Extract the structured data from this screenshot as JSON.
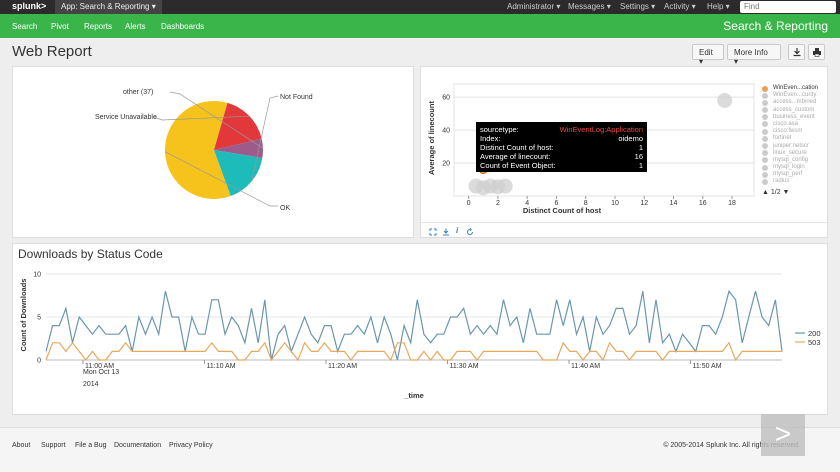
{
  "topbar": {
    "logo": "splunk>",
    "app_menu": "App: Search & Reporting",
    "menus": [
      "Administrator",
      "Messages",
      "Settings",
      "Activity",
      "Help"
    ],
    "find_placeholder": "Find"
  },
  "appbar": {
    "nav": [
      "Search",
      "Pivot",
      "Reports",
      "Alerts",
      "Dashboards"
    ],
    "app_title": "Search & Reporting"
  },
  "page": {
    "title": "Web Report",
    "edit_label": "Edit",
    "more_info_label": "More Info",
    "export_icon": "download-icon",
    "print_icon": "print-icon"
  },
  "pie": {
    "labels": [
      "other (37)",
      "Not Found",
      "Service Unavailable",
      "OK"
    ]
  },
  "chart_data": [
    {
      "type": "pie",
      "categories": [
        "OK",
        "Service Unavailable",
        "other (37)",
        "Not Found"
      ],
      "values": [
        57,
        16,
        6,
        16
      ],
      "colors": [
        "#f6c31c",
        "#e2383b",
        "#9d5b8c",
        "#1ebbbb"
      ]
    },
    {
      "type": "scatter",
      "xlabel": "Distinct Count of host",
      "ylabel": "Average of linecount",
      "xticks": [
        0,
        2,
        4,
        6,
        8,
        10,
        12,
        14,
        16,
        18
      ],
      "yticks": [
        20,
        40,
        60
      ],
      "xlim": [
        -1,
        19.5
      ],
      "ylim": [
        0,
        68
      ],
      "points": [
        {
          "x": 0.5,
          "y": 6
        },
        {
          "x": 1,
          "y": 5
        },
        {
          "x": 1.5,
          "y": 6
        },
        {
          "x": 2,
          "y": 5.5
        },
        {
          "x": 2.5,
          "y": 6
        },
        {
          "x": 1,
          "y": 16
        },
        {
          "x": 17.5,
          "y": 58
        }
      ],
      "highlight": {
        "x": 1,
        "y": 16
      },
      "legend": [
        "WinEven...cation",
        "WinEven...curity",
        "access...mbined",
        "access_custom",
        "business_event",
        "cisco:asa",
        "cisco:fwsm",
        "fortinet",
        "juniper:netscr",
        "linux_secure",
        "mysql_config",
        "mysql_login",
        "mysql_perf",
        "radius"
      ],
      "legend_page": "1/2"
    },
    {
      "type": "line",
      "title": "Downloads by Status Code",
      "xlabel": "_time",
      "ylabel": "Count of Downloads",
      "ylim": [
        0,
        10
      ],
      "yticks": [
        0,
        5,
        10
      ],
      "xtick_labels": [
        "11:00 AM",
        "11:10 AM",
        "11:20 AM",
        "11:30 AM",
        "11:40 AM",
        "11:50 AM"
      ],
      "xtick_sublabels": [
        "Mon Oct 13",
        "2014"
      ],
      "series": [
        {
          "name": "200",
          "color": "#6a97ad",
          "values": [
            1,
            4,
            4,
            6,
            2,
            5,
            4,
            3,
            4,
            3,
            3,
            3,
            4,
            1,
            5,
            3,
            5,
            3,
            8,
            5,
            5,
            1,
            5,
            3,
            3,
            7,
            7,
            3,
            5,
            4,
            2,
            6,
            2,
            7,
            0,
            3,
            4,
            1,
            3,
            5,
            3,
            2,
            4,
            4,
            1,
            3,
            3,
            4,
            3,
            5,
            2,
            5,
            3,
            0,
            4,
            2,
            7,
            3,
            2,
            3,
            3,
            5,
            5,
            6,
            3,
            4,
            3,
            4,
            3,
            7,
            4,
            5,
            2,
            6,
            3,
            3,
            3,
            7,
            4,
            7,
            3,
            5,
            1,
            5,
            3,
            4,
            6,
            6,
            3,
            4,
            8,
            2,
            7,
            2,
            3,
            1,
            3,
            2,
            1,
            4,
            4,
            3,
            5,
            8,
            7,
            2,
            5,
            8,
            5,
            4,
            7,
            1
          ]
        },
        {
          "name": "503",
          "color": "#e8a95c",
          "values": [
            0,
            2,
            2,
            1,
            2,
            1,
            0,
            1,
            0,
            0,
            1,
            1,
            2,
            1,
            1,
            1,
            1,
            1,
            1,
            1,
            1,
            1,
            1,
            1,
            1,
            2,
            1,
            1,
            1,
            0,
            0,
            1,
            1,
            2,
            0,
            1,
            2,
            1,
            0,
            2,
            1,
            1,
            2,
            1,
            1,
            1,
            0,
            1,
            1,
            1,
            1,
            1,
            0,
            2,
            2,
            0,
            0,
            1,
            0,
            1,
            0,
            0,
            1,
            1,
            1,
            0,
            1,
            1,
            1,
            1,
            1,
            1,
            1,
            1,
            1,
            0,
            0,
            0,
            2,
            1,
            1,
            0,
            1,
            1,
            0,
            2,
            1,
            1,
            0,
            1,
            1,
            1,
            1,
            0,
            1,
            1,
            1,
            1,
            1,
            1,
            1,
            1,
            1,
            2,
            0,
            1,
            1,
            1,
            1,
            1,
            1,
            1
          ]
        }
      ]
    }
  ],
  "viz_tools": [
    "inspect-icon",
    "export-icon",
    "info-icon",
    "refresh-icon"
  ],
  "tooltip": {
    "rows": [
      {
        "k": "sourcetype:",
        "v": "WinEventLog:Application"
      },
      {
        "k": "Index:",
        "v": "oidemo"
      },
      {
        "k": "Distinct Count of host:",
        "v": "1"
      },
      {
        "k": "Average of linecount:",
        "v": "16"
      },
      {
        "k": "Count of Event Object:",
        "v": "1"
      }
    ]
  },
  "footer": {
    "links": [
      "About",
      "Support",
      "File a Bug",
      "Documentation",
      "Privacy Policy"
    ],
    "copyright": "© 2005-2014 Splunk Inc. All rights reserved."
  },
  "play_glyph": ">"
}
